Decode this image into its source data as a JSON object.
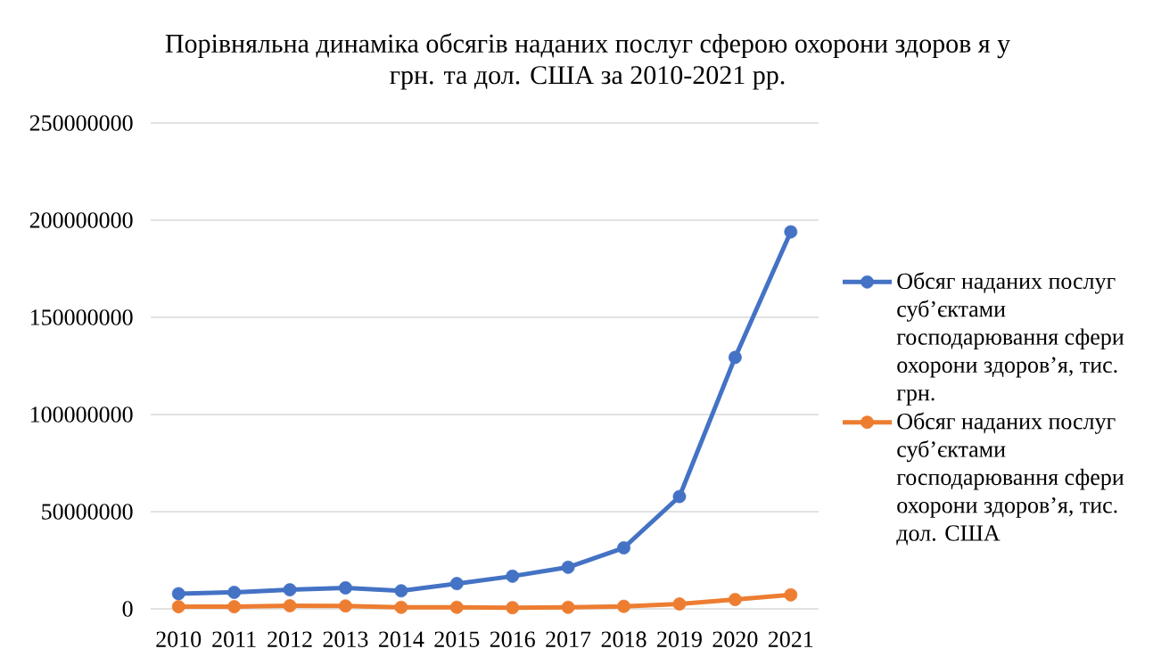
{
  "chart_data": {
    "type": "line",
    "title": "Порівняльна динаміка обсягів наданих послуг сферою охорони здоров я у грн. та дол. США за 2010-2021 рр.",
    "categories": [
      "2010",
      "2011",
      "2012",
      "2013",
      "2014",
      "2015",
      "2016",
      "2017",
      "2018",
      "2019",
      "2020",
      "2021"
    ],
    "series": [
      {
        "name": "Обсяг наданих послуг суб’єктами господарювання сфери охорони здоров’я, тис. грн.",
        "color": "#4472c4",
        "values": [
          7800000,
          8500000,
          9800000,
          10800000,
          9300000,
          13000000,
          16800000,
          21400000,
          31400000,
          57800000,
          129400000,
          194000000
        ]
      },
      {
        "name": "Обсяг наданих послуг суб’єктами господарювання сфери охорони здоров’я, тис. дол. США",
        "color": "#ed7d31",
        "values": [
          1100000,
          1100000,
          1600000,
          1500000,
          800000,
          800000,
          600000,
          800000,
          1300000,
          2500000,
          4800000,
          7200000
        ]
      }
    ],
    "ylim": [
      0,
      250000000
    ],
    "yticks": [
      0,
      50000000,
      100000000,
      150000000,
      200000000,
      250000000
    ],
    "grid": "y",
    "legend": "right",
    "marker": "circle",
    "line_style": "solid"
  }
}
